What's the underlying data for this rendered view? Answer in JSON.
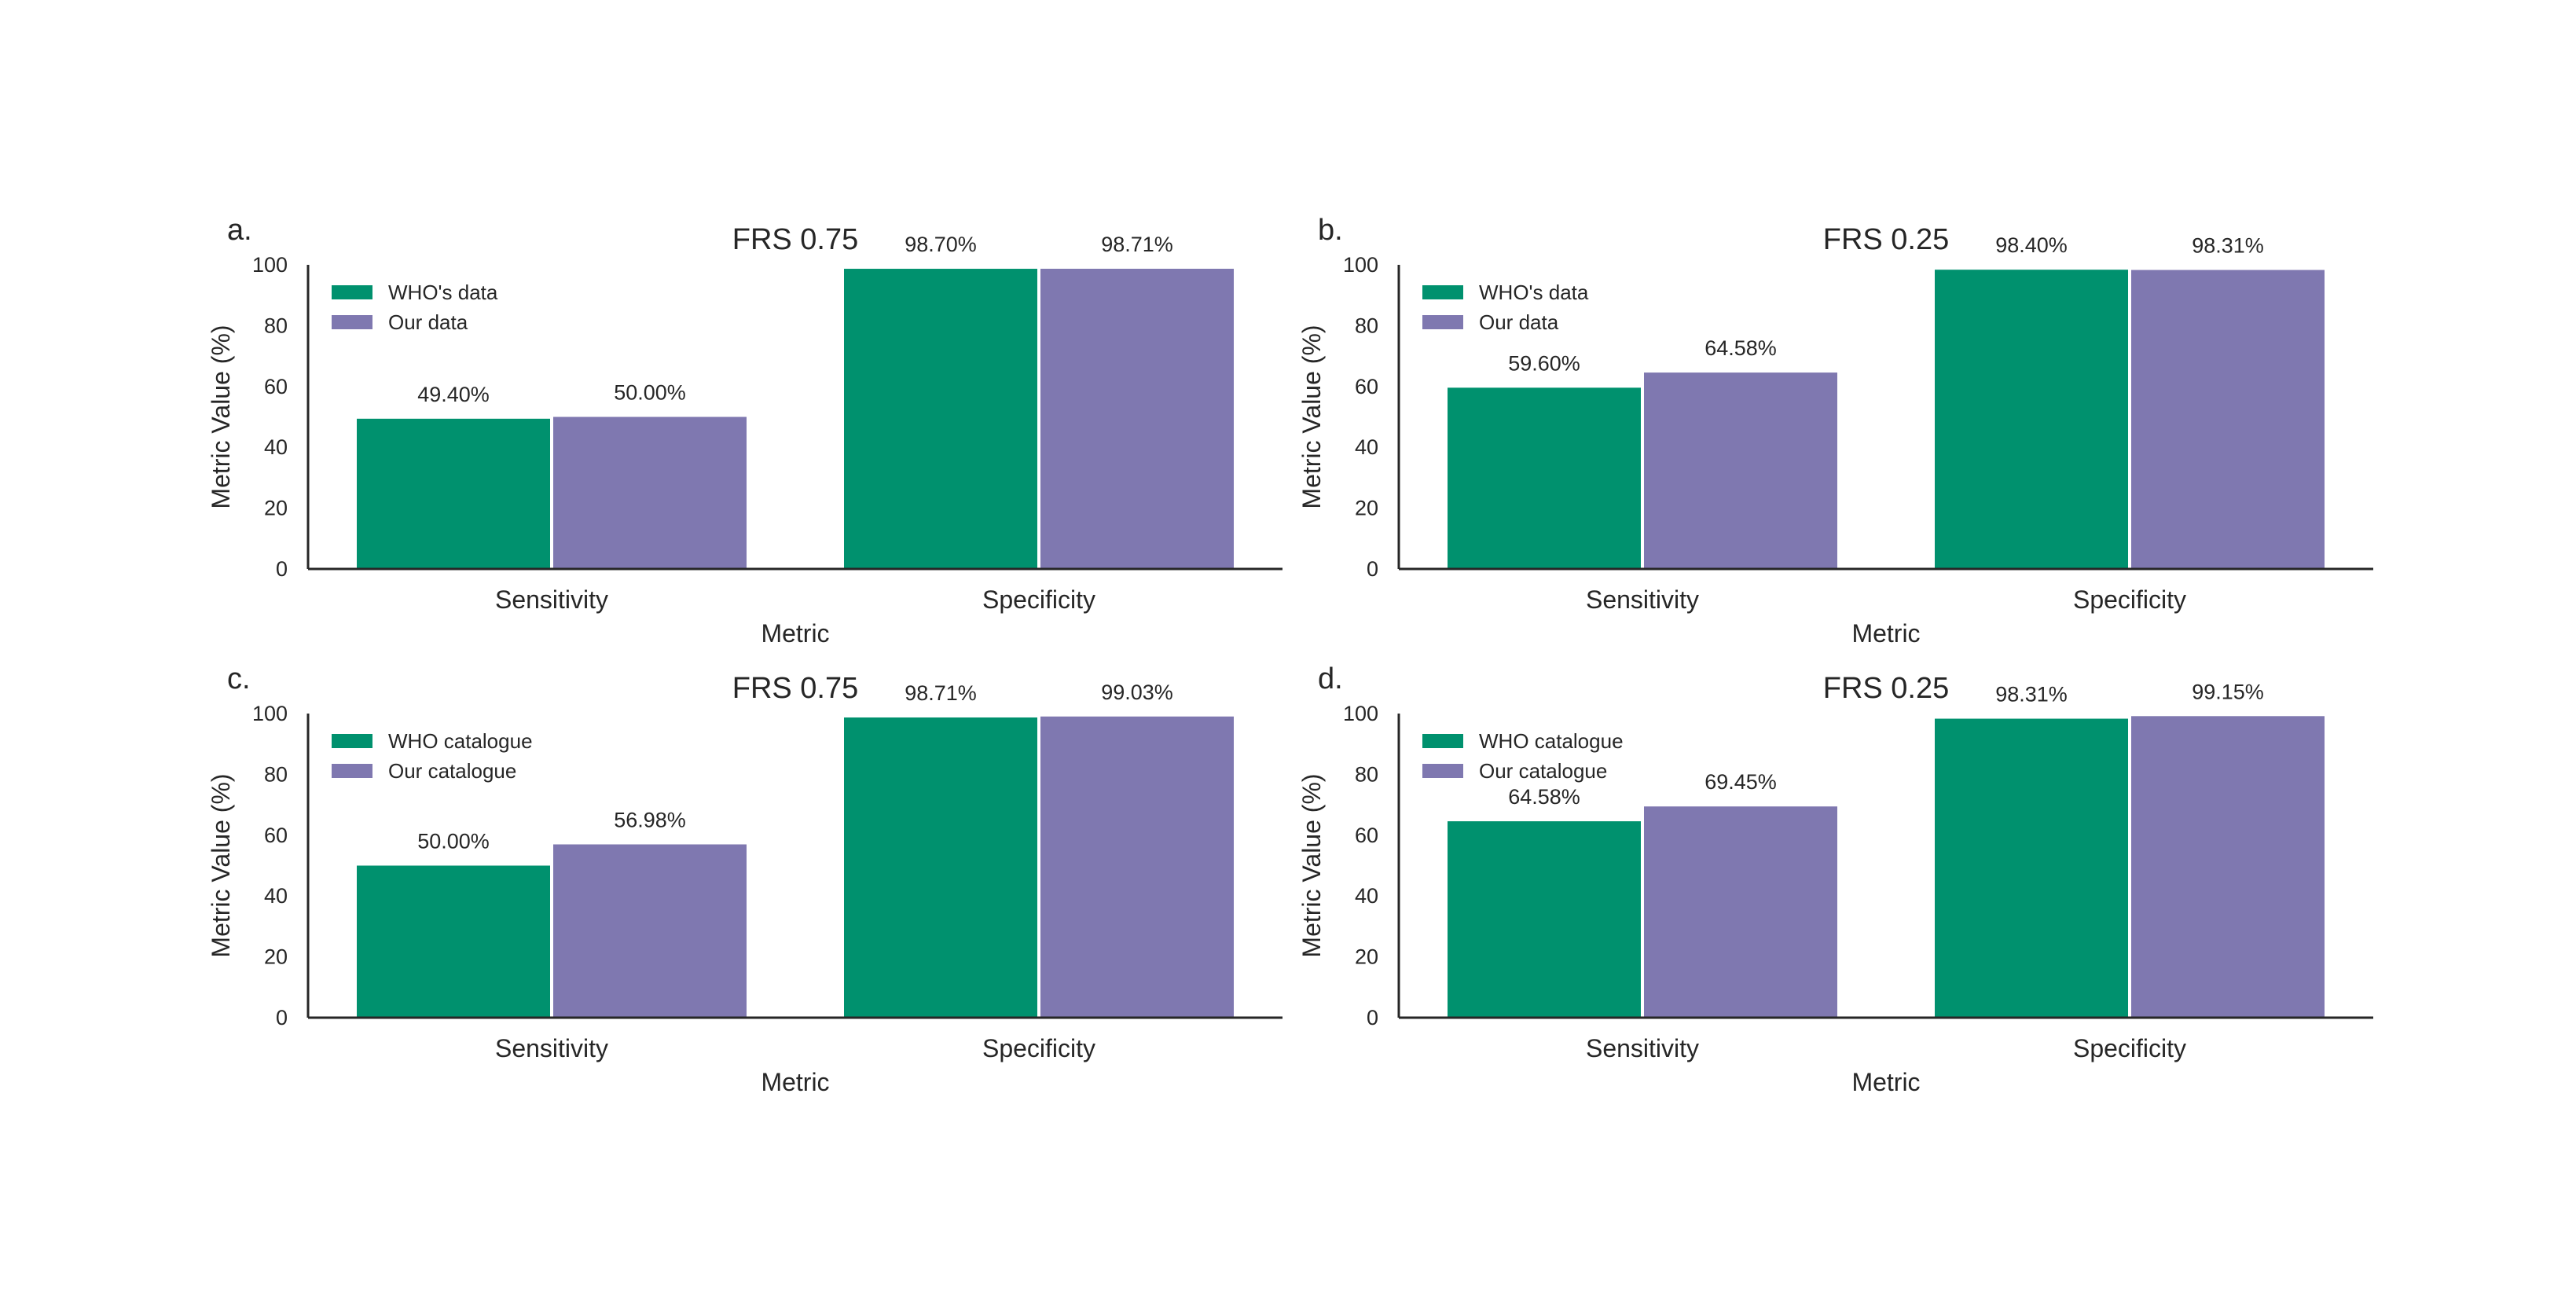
{
  "figure": {
    "colors": {
      "series_0": "#00916e",
      "series_1": "#7f78b0",
      "axis": "#262626"
    }
  },
  "chart_data": [
    {
      "panel_label": "a.",
      "type": "bar",
      "title": "FRS 0.75",
      "xlabel": "Metric",
      "ylabel": "Metric Value (%)",
      "ylim": [
        0,
        100
      ],
      "yticks": [
        "0",
        "20",
        "40",
        "60",
        "80",
        "100"
      ],
      "categories": [
        "Sensitivity",
        "Specificity"
      ],
      "legend_position": "top-left",
      "grid": false,
      "series": [
        {
          "name": "WHO's data",
          "values": [
            49.4,
            98.7
          ],
          "labels": [
            "49.40%",
            "98.70%"
          ]
        },
        {
          "name": "Our data",
          "values": [
            50.0,
            98.71
          ],
          "labels": [
            "50.00%",
            "98.71%"
          ]
        }
      ]
    },
    {
      "panel_label": "b.",
      "type": "bar",
      "title": "FRS 0.25",
      "xlabel": "Metric",
      "ylabel": "Metric Value (%)",
      "ylim": [
        0,
        100
      ],
      "yticks": [
        "0",
        "20",
        "40",
        "60",
        "80",
        "100"
      ],
      "categories": [
        "Sensitivity",
        "Specificity"
      ],
      "legend_position": "top-left",
      "grid": false,
      "series": [
        {
          "name": "WHO's data",
          "values": [
            59.6,
            98.4
          ],
          "labels": [
            "59.60%",
            "98.40%"
          ]
        },
        {
          "name": "Our data",
          "values": [
            64.58,
            98.31
          ],
          "labels": [
            "64.58%",
            "98.31%"
          ]
        }
      ]
    },
    {
      "panel_label": "c.",
      "type": "bar",
      "title": "FRS 0.75",
      "xlabel": "Metric",
      "ylabel": "Metric Value (%)",
      "ylim": [
        0,
        100
      ],
      "yticks": [
        "0",
        "20",
        "40",
        "60",
        "80",
        "100"
      ],
      "categories": [
        "Sensitivity",
        "Specificity"
      ],
      "legend_position": "top-left",
      "grid": false,
      "series": [
        {
          "name": "WHO catalogue",
          "values": [
            50.0,
            98.71
          ],
          "labels": [
            "50.00%",
            "98.71%"
          ]
        },
        {
          "name": "Our catalogue",
          "values": [
            56.98,
            99.03
          ],
          "labels": [
            "56.98%",
            "99.03%"
          ]
        }
      ]
    },
    {
      "panel_label": "d.",
      "type": "bar",
      "title": "FRS 0.25",
      "xlabel": "Metric",
      "ylabel": "Metric Value (%)",
      "ylim": [
        0,
        100
      ],
      "yticks": [
        "0",
        "20",
        "40",
        "60",
        "80",
        "100"
      ],
      "categories": [
        "Sensitivity",
        "Specificity"
      ],
      "legend_position": "top-left",
      "grid": false,
      "series": [
        {
          "name": "WHO catalogue",
          "values": [
            64.58,
            98.31
          ],
          "labels": [
            "64.58%",
            "98.31%"
          ]
        },
        {
          "name": "Our catalogue",
          "values": [
            69.45,
            99.15
          ],
          "labels": [
            "69.45%",
            "99.15%"
          ]
        }
      ]
    }
  ]
}
